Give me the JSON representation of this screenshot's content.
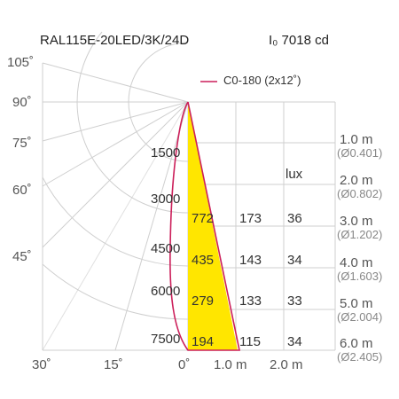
{
  "header": {
    "model": "RAL115E-20LED/3K/24D",
    "intensity": "I₀ 7018 cd"
  },
  "legend": {
    "label": "C0-180 (2x12˚)",
    "color": "#cc1f5a"
  },
  "fill_color": "#ffe600",
  "angles": {
    "a105": "105˚",
    "a90": "90˚",
    "a75": "75˚",
    "a60": "60˚",
    "a45": "45˚",
    "a30": "30˚",
    "a15": "15˚",
    "a0": "0˚"
  },
  "candela": [
    "1500",
    "3000",
    "4500",
    "6000",
    "7500"
  ],
  "lux_header": "lux",
  "lux_rows": [
    [
      "772",
      "173",
      "36"
    ],
    [
      "435",
      "143",
      "34"
    ],
    [
      "279",
      "133",
      "33"
    ],
    [
      "194",
      "115",
      "34"
    ]
  ],
  "bottom_axis": {
    "m1": "1.0 m",
    "m2": "2.0 m"
  },
  "distances": [
    {
      "d": "1.0 m",
      "diam": "(Ø0.401)"
    },
    {
      "d": "2.0 m",
      "diam": "(Ø0.802)"
    },
    {
      "d": "3.0 m",
      "diam": "(Ø1.202)"
    },
    {
      "d": "4.0 m",
      "diam": "(Ø1.603)"
    },
    {
      "d": "5.0 m",
      "diam": "(Ø2.004)"
    },
    {
      "d": "6.0 m",
      "diam": "(Ø2.405)"
    }
  ]
}
